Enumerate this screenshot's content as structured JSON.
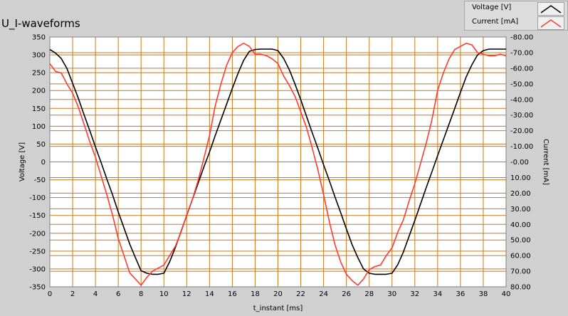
{
  "title": "U_I-waveforms",
  "legend": [
    {
      "label": "Voltage [V]",
      "color": "#000000"
    },
    {
      "label": "Current [mA]",
      "color": "#ff3b30"
    }
  ],
  "chart_data": {
    "type": "line",
    "xlabel": "t_instant [ms]",
    "ylabel_left": "Voltage [V]",
    "ylabel_right": "Current [mA]",
    "xlim": [
      0,
      40
    ],
    "ylim_left": [
      -350,
      350
    ],
    "ylim_right": [
      -80,
      80
    ],
    "x_ticks": [
      "0",
      "2",
      "4",
      "6",
      "8",
      "10",
      "12",
      "14",
      "16",
      "18",
      "20",
      "22",
      "24",
      "26",
      "28",
      "30",
      "32",
      "34",
      "36",
      "38",
      "40"
    ],
    "y_ticks_left": [
      "350",
      "300",
      "250",
      "200",
      "150",
      "100",
      "50",
      "0",
      "-50",
      "-100",
      "-150",
      "-200",
      "-250",
      "-300",
      "-350"
    ],
    "y_ticks_right": [
      "-80.00",
      "-70.00",
      "-60.00",
      "-50.00",
      "-40.00",
      "-30.00",
      "-20.00",
      "-10.00",
      "-0.00",
      "10.00",
      "20.00",
      "30.00",
      "40.00",
      "50.00",
      "60.00",
      "70.00",
      "80.00"
    ],
    "grid": true,
    "plot_background": "#ffffff",
    "grid_color": "#c8781e",
    "series": [
      {
        "name": "Voltage [V]",
        "color": "#000000",
        "x": [
          0,
          0.5,
          1,
          1.5,
          2,
          2.5,
          3,
          3.5,
          4,
          4.5,
          5,
          5.5,
          6,
          6.5,
          7,
          7.5,
          8,
          8.5,
          9,
          9.5,
          10,
          10.5,
          11,
          11.5,
          12,
          12.5,
          13,
          13.5,
          14,
          14.5,
          15,
          15.5,
          16,
          16.5,
          17,
          17.5,
          18,
          18.5,
          19,
          19.5,
          20,
          20.5,
          21,
          21.5,
          22,
          22.5,
          23,
          23.5,
          24,
          24.5,
          25,
          25.5,
          26,
          26.5,
          27,
          27.5,
          28,
          28.5,
          29,
          29.5,
          30,
          30.5,
          31,
          31.5,
          32,
          32.5,
          33,
          33.5,
          34,
          34.5,
          35,
          35.5,
          36,
          36.5,
          37,
          37.5,
          38,
          38.5,
          39,
          39.5,
          40
        ],
        "y": [
          315,
          305,
          290,
          262,
          220,
          178,
          132,
          88,
          42,
          -2,
          -48,
          -92,
          -140,
          -185,
          -230,
          -268,
          -305,
          -312,
          -315,
          -315,
          -312,
          -280,
          -240,
          -195,
          -150,
          -105,
          -60,
          -15,
          28,
          74,
          118,
          162,
          206,
          248,
          285,
          310,
          315,
          316,
          316,
          316,
          312,
          290,
          258,
          218,
          174,
          128,
          82,
          38,
          -8,
          -52,
          -98,
          -142,
          -188,
          -232,
          -268,
          -300,
          -312,
          -315,
          -315,
          -315,
          -312,
          -288,
          -252,
          -208,
          -164,
          -118,
          -72,
          -28,
          18,
          62,
          106,
          150,
          195,
          238,
          272,
          300,
          312,
          316,
          316,
          316,
          316
        ]
      },
      {
        "name": "Current [mA]",
        "color": "#ff3b30",
        "x": [
          0,
          0.5,
          1,
          1.5,
          2,
          2.5,
          3,
          3.5,
          4,
          4.5,
          5,
          5.5,
          6,
          6.5,
          7,
          7.5,
          8,
          8.5,
          9,
          9.5,
          10,
          10.5,
          11,
          11.5,
          12,
          12.5,
          13,
          13.5,
          14,
          14.5,
          15,
          15.5,
          16,
          16.5,
          17,
          17.5,
          18,
          18.5,
          19,
          19.5,
          20,
          20.5,
          21,
          21.5,
          22,
          22.5,
          23,
          23.5,
          24,
          24.5,
          25,
          25.5,
          26,
          26.5,
          27,
          27.5,
          28,
          28.5,
          29,
          29.5,
          30,
          30.5,
          31,
          31.5,
          32,
          32.5,
          33,
          33.5,
          34,
          34.5,
          35,
          35.5,
          36,
          36.5,
          37,
          37.5,
          38,
          38.5,
          39,
          39.5,
          40
        ],
        "y": [
          -63,
          -58,
          -57,
          -50,
          -44,
          -35,
          -24,
          -13,
          -3,
          9,
          21,
          34,
          49,
          60,
          71,
          75,
          79,
          74,
          70,
          68,
          66,
          60,
          54,
          45,
          34,
          24,
          12,
          -2,
          -17,
          -36,
          -50,
          -62,
          -70,
          -74,
          -76,
          -74,
          -69,
          -69,
          -68,
          -66,
          -63,
          -55,
          -49,
          -42,
          -32,
          -22,
          -9,
          5,
          21,
          38,
          53,
          64,
          72,
          76,
          79,
          75,
          69,
          67,
          66,
          60,
          55,
          45,
          37,
          25,
          14,
          1,
          -12,
          -27,
          -46,
          -57,
          -66,
          -72,
          -74,
          -76,
          -75,
          -70,
          -69,
          -68,
          -68,
          -69,
          -68
        ]
      }
    ]
  }
}
